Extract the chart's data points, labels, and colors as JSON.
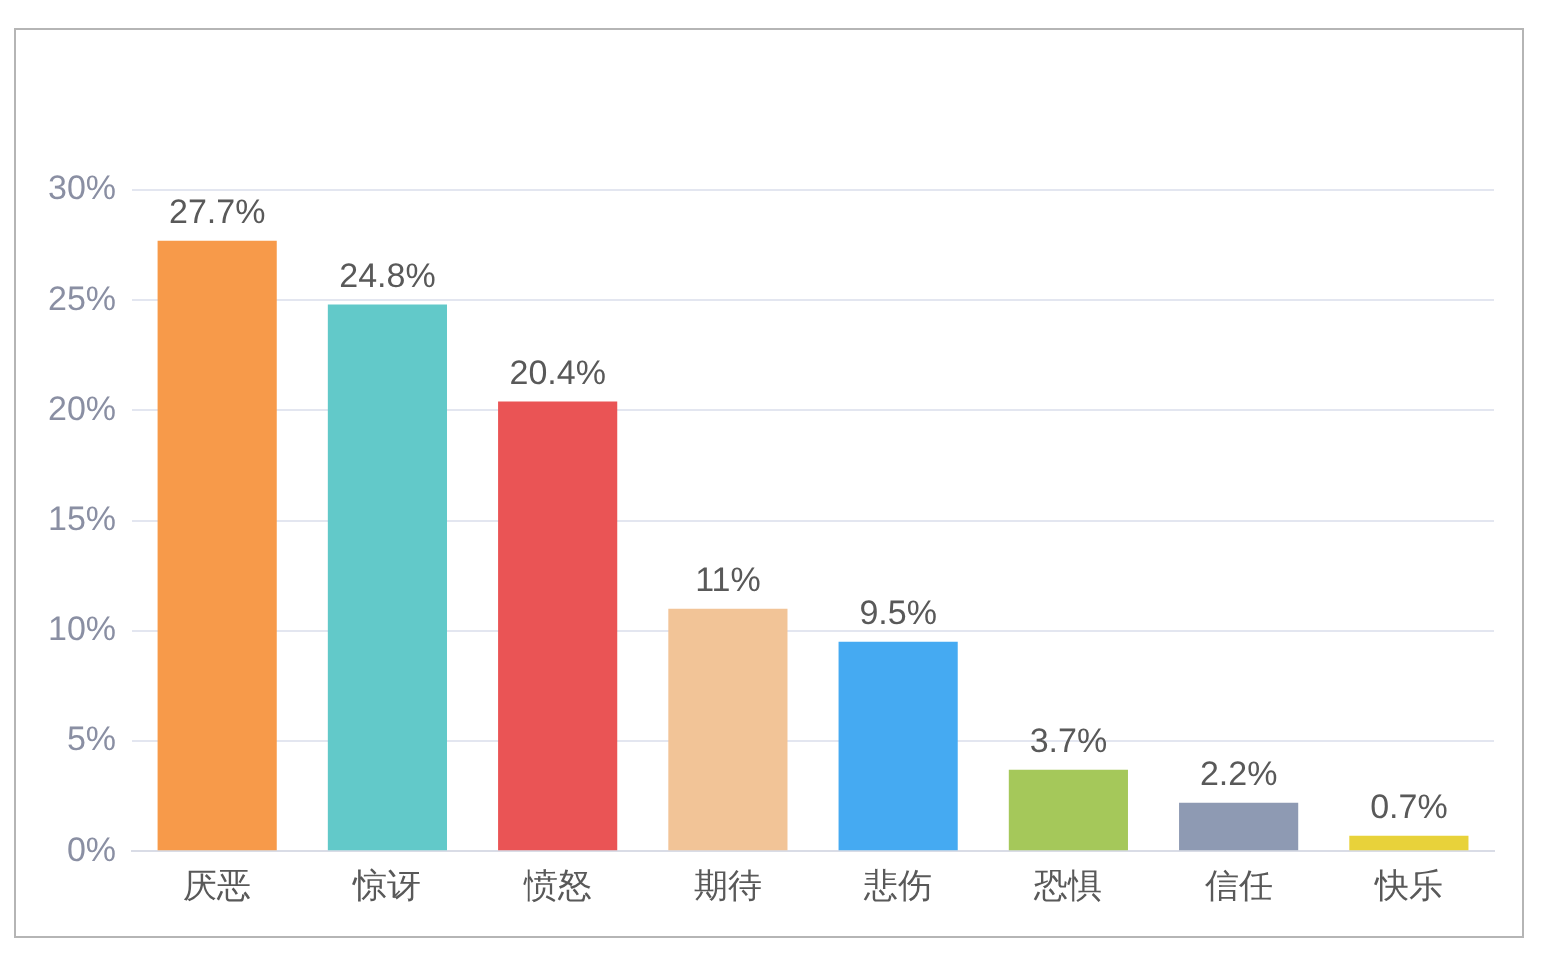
{
  "chart_data": {
    "type": "bar",
    "categories": [
      "厌恶",
      "惊讶",
      "愤怒",
      "期待",
      "悲伤",
      "恐惧",
      "信任",
      "快乐"
    ],
    "values": [
      27.7,
      24.8,
      20.4,
      11,
      9.5,
      3.7,
      2.2,
      0.7
    ],
    "colors": [
      "#f79a4a",
      "#62c9c9",
      "#ea5455",
      "#f2c497",
      "#45aaf2",
      "#a5c85a",
      "#8e9ab3",
      "#e8d23a"
    ],
    "value_labels": [
      "27.7%",
      "24.8%",
      "20.4%",
      "11%",
      "9.5%",
      "3.7%",
      "2.2%",
      "0.7%"
    ],
    "ylim": [
      0,
      30
    ],
    "yticks": [
      {
        "value": 0,
        "label": "0%"
      },
      {
        "value": 5,
        "label": "5%"
      },
      {
        "value": 10,
        "label": "10%"
      },
      {
        "value": 15,
        "label": "15%"
      },
      {
        "value": 20,
        "label": "20%"
      },
      {
        "value": 25,
        "label": "25%"
      },
      {
        "value": 30,
        "label": "30%"
      }
    ],
    "grid": "y"
  }
}
